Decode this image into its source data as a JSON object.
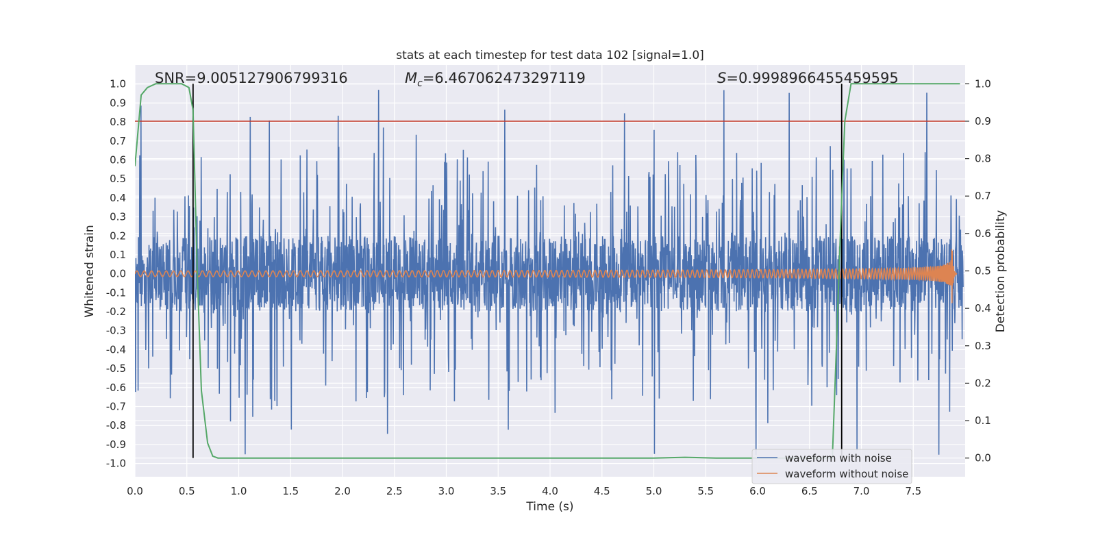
{
  "chart_data": {
    "type": "line",
    "title": "stats at each timestep for test data 102 [signal=1.0]",
    "xlabel": "Time (s)",
    "ylabel": "Whitened strain",
    "y2label": "Detection probability",
    "xlim": [
      0.0,
      8.0
    ],
    "ylim": [
      -1.07,
      1.1
    ],
    "y2lim": [
      -0.05,
      1.05
    ],
    "grid": true,
    "xticks": [
      "0.0",
      "0.5",
      "1.0",
      "1.5",
      "2.0",
      "2.5",
      "3.0",
      "3.5",
      "4.0",
      "4.5",
      "5.0",
      "5.5",
      "6.0",
      "6.5",
      "7.0",
      "7.5"
    ],
    "yticks": [
      "1.0",
      "0.9",
      "0.8",
      "0.7",
      "0.6",
      "0.5",
      "0.4",
      "0.3",
      "0.2",
      "0.1",
      "0.0",
      "-0.1",
      "-0.2",
      "-0.3",
      "-0.4",
      "-0.5",
      "-0.6",
      "-0.7",
      "-0.8",
      "-0.9",
      "-1.0"
    ],
    "y2ticks": [
      "1.0",
      "0.9",
      "0.8",
      "0.7",
      "0.6",
      "0.5",
      "0.4",
      "0.3",
      "0.2",
      "0.1",
      "0.0"
    ],
    "annotations": {
      "snr": "SNR=9.005127906799316",
      "mc_symbol": "M",
      "mc_sub": "c",
      "mc_value": "=6.467062473297119",
      "s_symbol": "S",
      "s_value": "=0.9998966455459595"
    },
    "threshold": {
      "value": 0.9,
      "axis": "right",
      "color": "#c0392b"
    },
    "vlines": [
      0.56,
      6.81
    ],
    "series": [
      {
        "name": "waveform with noise",
        "color": "#4c72b0",
        "kind": "noise",
        "band_core": 0.2,
        "peak_max": 1.0,
        "trough_min": -1.0
      },
      {
        "name": "waveform without noise",
        "color": "#dd8452",
        "kind": "chirp",
        "start_amp": 0.015,
        "peak_amp": 0.21,
        "merger_time": 7.87,
        "end_time": 7.92
      },
      {
        "name": "detection probability",
        "color": "#55a868",
        "axis": "right",
        "x": [
          0.0,
          0.06,
          0.12,
          0.2,
          0.45,
          0.52,
          0.56,
          0.6,
          0.64,
          0.7,
          0.75,
          0.8,
          1.0,
          3.0,
          4.5,
          5.0,
          5.3,
          5.6,
          6.0,
          6.5,
          6.72,
          6.76,
          6.8,
          6.84,
          6.9,
          7.0,
          7.5,
          7.95
        ],
        "y": [
          0.78,
          0.97,
          0.99,
          1.0,
          1.0,
          0.99,
          0.93,
          0.5,
          0.18,
          0.04,
          0.005,
          0.0,
          0.0,
          0.0,
          0.0,
          0.0,
          0.002,
          0.0,
          0.0,
          0.0,
          0.0,
          0.3,
          0.62,
          0.9,
          1.0,
          1.0,
          1.0,
          1.0
        ]
      }
    ],
    "legend_position": "lower-right"
  }
}
